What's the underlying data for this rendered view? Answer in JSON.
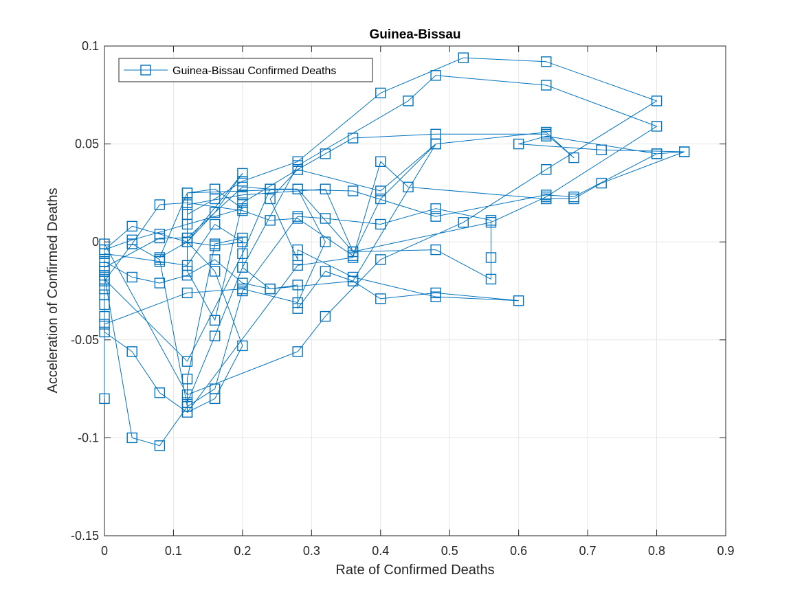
{
  "chart_data": {
    "type": "line",
    "title": "Guinea-Bissau",
    "xlabel": "Rate of Confirmed Deaths",
    "ylabel": "Acceleration of Confirmed Deaths",
    "xlim": [
      0,
      0.9
    ],
    "ylim": [
      -0.15,
      0.1
    ],
    "xticks": [
      0,
      0.1,
      0.2,
      0.3,
      0.4,
      0.5,
      0.6,
      0.7,
      0.8,
      0.9
    ],
    "xtick_labels": [
      "0",
      "0.1",
      "0.2",
      "0.3",
      "0.4",
      "0.5",
      "0.6",
      "0.7",
      "0.8",
      "0.9"
    ],
    "yticks": [
      -0.15,
      -0.1,
      -0.05,
      0,
      0.05,
      0.1
    ],
    "ytick_labels": [
      "-0.15",
      "-0.1",
      "-0.05",
      "0",
      "0.05",
      "0.1"
    ],
    "grid": true,
    "legend_position": "top-left",
    "marker": "square",
    "color": "#0072BD",
    "series": [
      {
        "name": "Guinea-Bissau Confirmed Deaths",
        "points": [
          [
            0,
            -0.08
          ],
          [
            0,
            -0.046
          ],
          [
            0.04,
            -0.056
          ],
          [
            0.08,
            -0.077
          ],
          [
            0.12,
            -0.087
          ],
          [
            0.16,
            -0.08
          ],
          [
            0.2,
            -0.053
          ],
          [
            0.16,
            -0.015
          ],
          [
            0.12,
            0.0
          ],
          [
            0.16,
            0.015
          ],
          [
            0.2,
            0.035
          ],
          [
            0.12,
            0.0
          ],
          [
            0.08,
            -0.008
          ],
          [
            0.12,
            0.025
          ],
          [
            0.16,
            0.027
          ],
          [
            0.2,
            0.017
          ],
          [
            0.12,
            0.009
          ],
          [
            0.04,
            0.001
          ],
          [
            0,
            -0.004
          ],
          [
            0.04,
            0.008
          ],
          [
            0.08,
            0.004
          ],
          [
            0.12,
            0.0
          ],
          [
            0.16,
            -0.002
          ],
          [
            0.2,
            0.0
          ],
          [
            0.16,
            0.009
          ],
          [
            0.12,
            -0.012
          ],
          [
            0.08,
            -0.01
          ],
          [
            0,
            -0.006
          ],
          [
            0,
            -0.01
          ],
          [
            0.04,
            -0.018
          ],
          [
            0.08,
            -0.021
          ],
          [
            0.12,
            -0.017
          ],
          [
            0.16,
            -0.009
          ],
          [
            0.2,
            -0.021
          ],
          [
            0.24,
            -0.024
          ],
          [
            0.28,
            -0.022
          ],
          [
            0.28,
            -0.034
          ],
          [
            0.32,
            -0.015
          ],
          [
            0.36,
            -0.02
          ],
          [
            0.4,
            -0.029
          ],
          [
            0.48,
            -0.026
          ],
          [
            0.6,
            -0.03
          ],
          [
            0.48,
            -0.028
          ],
          [
            0.36,
            -0.018
          ],
          [
            0.28,
            -0.004
          ],
          [
            0.28,
            -0.009
          ],
          [
            0.24,
            0.022
          ],
          [
            0.28,
            0.037
          ],
          [
            0.32,
            0.045
          ],
          [
            0.36,
            0.053
          ],
          [
            0.48,
            0.055
          ],
          [
            0.64,
            0.055
          ],
          [
            0.68,
            0.043
          ],
          [
            0.64,
            0.056
          ],
          [
            0.48,
            0.05
          ],
          [
            0.4,
            0.022
          ],
          [
            0.36,
            -0.007
          ],
          [
            0.28,
            0.012
          ],
          [
            0.24,
            0.011
          ],
          [
            0.2,
            0.016
          ],
          [
            0.12,
            0.02
          ],
          [
            0.08,
            0.019
          ],
          [
            0.04,
            -0.001
          ],
          [
            0,
            -0.02
          ],
          [
            0,
            -0.024
          ],
          [
            0,
            -0.027
          ],
          [
            0,
            -0.032
          ],
          [
            0,
            -0.038
          ],
          [
            0,
            -0.042
          ],
          [
            0.12,
            -0.026
          ],
          [
            0.2,
            -0.024
          ],
          [
            0.28,
            -0.031
          ],
          [
            0.32,
            0.0
          ],
          [
            0.28,
            0.027
          ],
          [
            0.24,
            0.027
          ],
          [
            0.2,
            0.028
          ],
          [
            0.12,
            0.002
          ],
          [
            0.08,
            0.002
          ],
          [
            0,
            -0.013
          ],
          [
            0,
            -0.015
          ],
          [
            0,
            -0.017
          ],
          [
            0.04,
            -0.1
          ],
          [
            0.08,
            -0.104
          ],
          [
            0.12,
            -0.084
          ],
          [
            0.16,
            -0.075
          ],
          [
            0.2,
            -0.025
          ],
          [
            0.28,
            0.013
          ],
          [
            0.32,
            0.012
          ],
          [
            0.4,
            0.009
          ],
          [
            0.48,
            0.017
          ],
          [
            0.56,
            0.011
          ],
          [
            0.56,
            -0.008
          ],
          [
            0.56,
            -0.019
          ],
          [
            0.48,
            -0.004
          ],
          [
            0.36,
            -0.005
          ],
          [
            0.32,
            0.027
          ],
          [
            0.2,
            0.024
          ],
          [
            0.12,
            0.019
          ],
          [
            0.12,
            0.014
          ],
          [
            0.16,
            0.022
          ],
          [
            0.2,
            0.031
          ],
          [
            0.28,
            0.041
          ],
          [
            0.4,
            0.076
          ],
          [
            0.52,
            0.094
          ],
          [
            0.64,
            0.092
          ],
          [
            0.8,
            0.072
          ],
          [
            0.64,
            0.037
          ],
          [
            0.52,
            0.01
          ],
          [
            0.4,
            -0.009
          ],
          [
            0.32,
            -0.038
          ],
          [
            0.28,
            -0.056
          ],
          [
            0.12,
            -0.078
          ],
          [
            0,
            -0.001
          ],
          [
            0,
            -0.019
          ],
          [
            0.12,
            -0.061
          ],
          [
            0.2,
            -0.006
          ],
          [
            0.24,
            0.027
          ],
          [
            0.36,
            0.026
          ],
          [
            0.48,
            0.013
          ],
          [
            0.64,
            0.024
          ],
          [
            0.68,
            0.023
          ],
          [
            0.8,
            0.045
          ],
          [
            0.84,
            0.046
          ],
          [
            0.72,
            0.047
          ],
          [
            0.6,
            0.05
          ],
          [
            0.64,
            0.054
          ],
          [
            0.8,
            0.045
          ],
          [
            0.84,
            0.046
          ],
          [
            0.72,
            0.03
          ],
          [
            0.68,
            0.022
          ],
          [
            0.64,
            0.022
          ],
          [
            0.44,
            0.028
          ],
          [
            0.4,
            0.041
          ],
          [
            0.36,
            -0.008
          ],
          [
            0.28,
            -0.012
          ],
          [
            0.12,
            -0.087
          ],
          [
            0.12,
            -0.082
          ],
          [
            0.16,
            -0.048
          ],
          [
            0.2,
            -0.013
          ],
          [
            0.28,
            0.039
          ],
          [
            0.44,
            0.072
          ],
          [
            0.48,
            0.085
          ],
          [
            0.64,
            0.08
          ],
          [
            0.8,
            0.059
          ],
          [
            0.64,
            0.023
          ],
          [
            0.56,
            0.01
          ],
          [
            0.36,
            -0.005
          ],
          [
            0.28,
            0.027
          ],
          [
            0.12,
            0.025
          ],
          [
            0.12,
            0.002
          ],
          [
            0.12,
            -0.015
          ],
          [
            0.16,
            -0.04
          ],
          [
            0.2,
            0.02
          ],
          [
            0.28,
            0.037
          ],
          [
            0.4,
            0.026
          ],
          [
            0.48,
            0.05
          ],
          [
            0.36,
            -0.02
          ],
          [
            0.24,
            -0.024
          ],
          [
            0.2,
            -0.013
          ],
          [
            0.2,
            0.002
          ],
          [
            0.16,
            -0.001
          ],
          [
            0.12,
            -0.07
          ],
          [
            0.12,
            -0.084
          ],
          [
            0.08,
            -0.009
          ],
          [
            0.04,
            -0.001
          ]
        ]
      }
    ]
  }
}
